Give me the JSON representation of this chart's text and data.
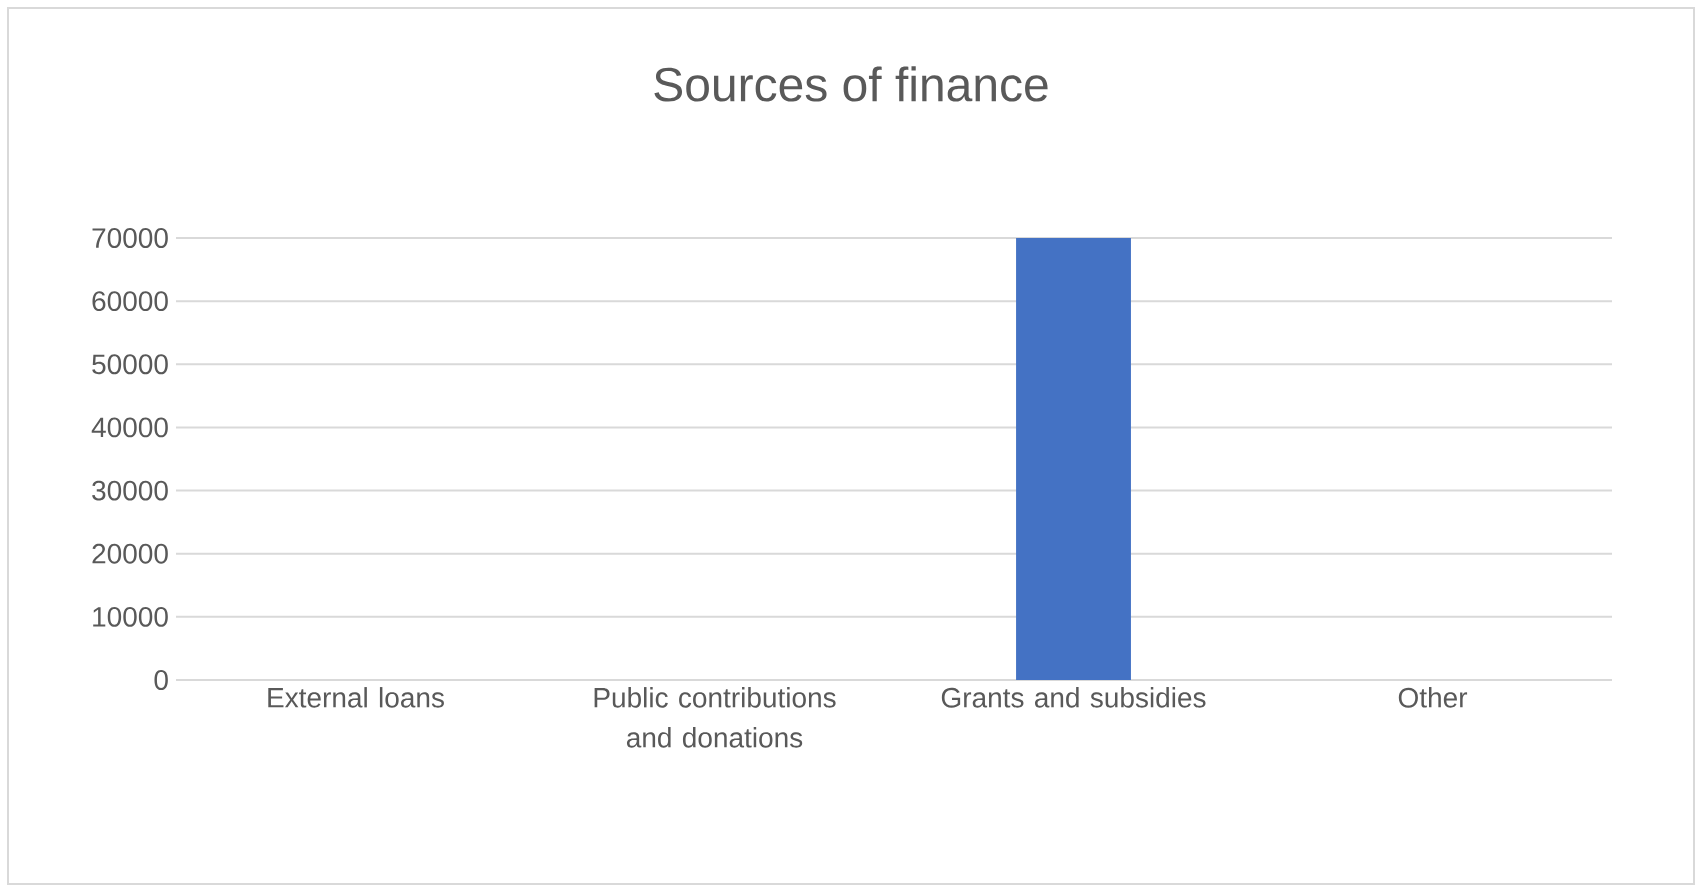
{
  "chart_data": {
    "type": "bar",
    "title": "Sources of finance",
    "categories": [
      "External loans",
      "Public contributions and donations",
      "Grants and subsidies",
      "Other"
    ],
    "values": [
      0,
      0,
      70000,
      0
    ],
    "color": "#4472c4",
    "ylim": [
      0,
      70000
    ],
    "yticks": [
      0,
      10000,
      20000,
      30000,
      40000,
      50000,
      60000,
      70000
    ],
    "grid": "y"
  }
}
